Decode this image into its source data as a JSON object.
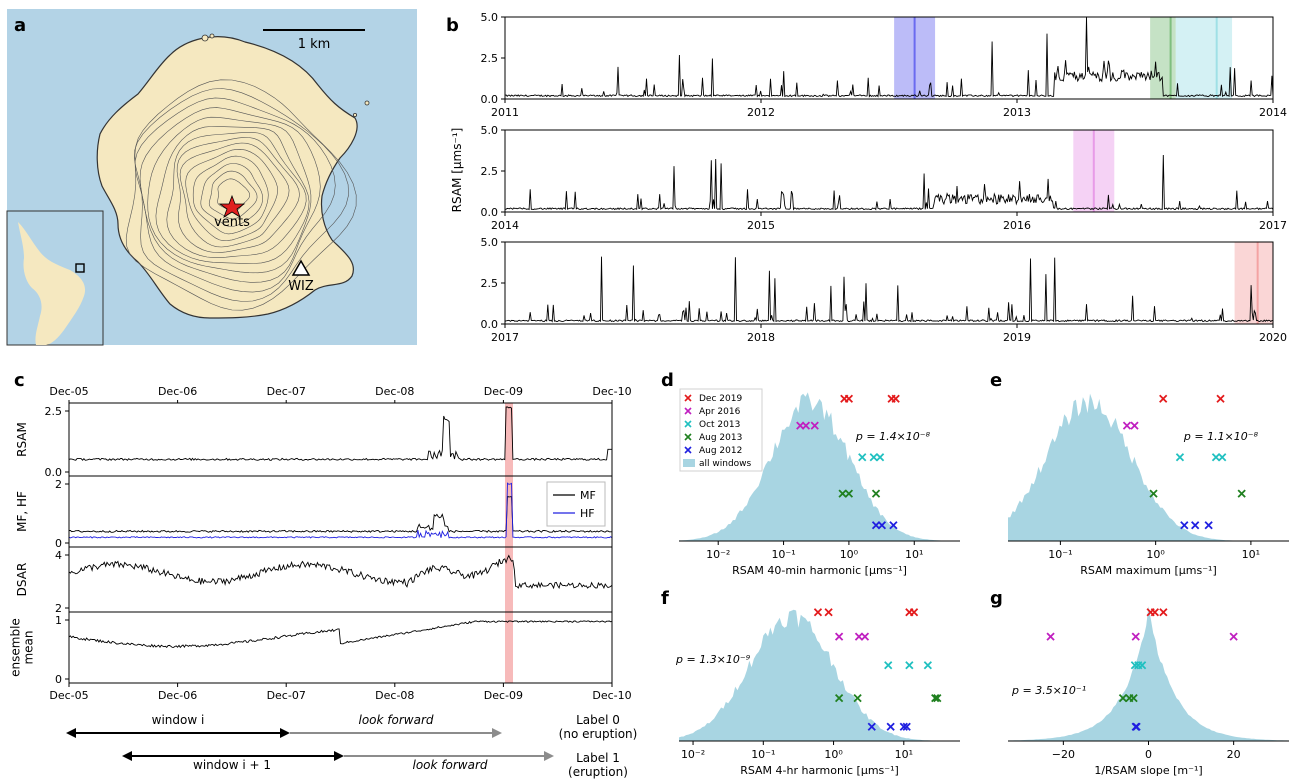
{
  "panel_letters": [
    "a",
    "b",
    "c",
    "d",
    "e",
    "f",
    "g"
  ],
  "map": {
    "scale_label": "1 km",
    "vents_label": "vents",
    "station_label": "WIZ",
    "colors": {
      "sea": "#b3d3e6",
      "land": "#f5e8c0",
      "contour": "#3a3a3a",
      "vent_star": "#e02020"
    }
  },
  "rsam_timeline": {
    "ylabel": "RSAM [μms⁻¹]",
    "rows": [
      {
        "ticks": [
          "2011",
          "2012",
          "2013",
          "2014"
        ],
        "yticks": [
          "0.0",
          "2.5",
          "5.0"
        ],
        "shaded": [
          {
            "start": 2012.52,
            "end": 2012.68,
            "color": "#6a6af0",
            "line": 2012.6
          },
          {
            "start": 2013.52,
            "end": 2013.62,
            "color": "#7fbf7f",
            "line": 2013.6
          },
          {
            "start": 2013.62,
            "end": 2013.84,
            "color": "#9fe0e6",
            "line": 2013.78
          }
        ]
      },
      {
        "ticks": [
          "2014",
          "2015",
          "2016",
          "2017"
        ],
        "yticks": [
          "0.0",
          "2.5",
          "5.0"
        ],
        "shaded": [
          {
            "start": 2016.22,
            "end": 2016.38,
            "color": "#e89be8",
            "line": 2016.3
          }
        ]
      },
      {
        "ticks": [
          "2017",
          "2018",
          "2019",
          "2020"
        ],
        "yticks": [
          "0.0",
          "2.5",
          "5.0"
        ],
        "shaded": [
          {
            "start": 2019.85,
            "end": 2020.0,
            "color": "#f3a3a3",
            "line": 2019.94
          }
        ]
      }
    ]
  },
  "window_panel": {
    "date_ticks": [
      "Dec-05",
      "Dec-06",
      "Dec-07",
      "Dec-08",
      "Dec-09",
      "Dec-10"
    ],
    "rows": [
      {
        "label": "RSAM",
        "yticks": [
          "0.0",
          "2.5"
        ]
      },
      {
        "label": "MF, HF",
        "yticks": [
          "0",
          "2"
        ]
      },
      {
        "label": "DSAR",
        "yticks": [
          "2",
          "4"
        ]
      },
      {
        "label": "ensemble\nmean",
        "yticks": [
          "0",
          "1"
        ]
      }
    ],
    "legend": [
      {
        "name": "MF",
        "color": "#000000"
      },
      {
        "name": "HF",
        "color": "#2020e0"
      }
    ],
    "eruption_shade_color": "#f6b3b3",
    "arrows": {
      "window_i": "window i",
      "look_forward_1": "look forward",
      "label_0_line1": "Label 0",
      "label_0_line2": "(no eruption)",
      "window_i1": "window i + 1",
      "look_forward_2": "look forward",
      "label_1_line1": "Label 1",
      "label_1_line2": "(eruption)"
    }
  },
  "distribution_legend": [
    {
      "name": "Dec 2019",
      "color": "#e31a1c",
      "marker": "x"
    },
    {
      "name": "Apr 2016",
      "color": "#c020c0",
      "marker": "x"
    },
    {
      "name": "Oct 2013",
      "color": "#20c0c0",
      "marker": "x"
    },
    {
      "name": "Aug 2013",
      "color": "#208020",
      "marker": "x"
    },
    {
      "name": "Aug 2012",
      "color": "#2020e0",
      "marker": "x"
    },
    {
      "name": "all windows",
      "color": "#a8d5e2",
      "marker": "patch"
    }
  ],
  "chart_data": [
    {
      "panel": "d",
      "type": "area",
      "xlabel": "RSAM 40-min harmonic [μms⁻¹]",
      "xscale": "log",
      "xticks": [
        "10⁻²",
        "10⁻¹",
        "10⁰",
        "10¹"
      ],
      "p_value": "p = 1.4×10⁻⁸",
      "markers": [
        {
          "event": "Dec 2019",
          "x": [
            0.85,
            1.0,
            4.5,
            5.2
          ]
        },
        {
          "event": "Apr 2016",
          "x": [
            0.18,
            0.22,
            0.3
          ]
        },
        {
          "event": "Oct 2013",
          "x": [
            1.6,
            2.4,
            3.0
          ]
        },
        {
          "event": "Aug 2013",
          "x": [
            0.8,
            1.0,
            2.6
          ]
        },
        {
          "event": "Aug 2012",
          "x": [
            2.6,
            3.2,
            4.8
          ]
        }
      ]
    },
    {
      "panel": "e",
      "type": "area",
      "xlabel": "RSAM maximum [μms⁻¹]",
      "xscale": "log",
      "xticks": [
        "10⁻¹",
        "10⁰",
        "10¹"
      ],
      "p_value": "p = 1.1×10⁻⁸",
      "markers": [
        {
          "event": "Dec 2019",
          "x": [
            1.2,
            4.8
          ]
        },
        {
          "event": "Apr 2016",
          "x": [
            0.5,
            0.6
          ]
        },
        {
          "event": "Oct 2013",
          "x": [
            1.8,
            4.3,
            5.0
          ]
        },
        {
          "event": "Aug 2013",
          "x": [
            0.95,
            8.0
          ]
        },
        {
          "event": "Aug 2012",
          "x": [
            2.0,
            2.6,
            3.6
          ]
        }
      ]
    },
    {
      "panel": "f",
      "type": "area",
      "xlabel": "RSAM 4-hr harmonic [μms⁻¹]",
      "xscale": "log",
      "xticks": [
        "10⁻²",
        "10⁻¹",
        "10⁰",
        "10¹"
      ],
      "p_value": "p = 1.3×10⁻⁹",
      "markers": [
        {
          "event": "Dec 2019",
          "x": [
            0.6,
            0.85,
            12.0,
            14.0
          ]
        },
        {
          "event": "Apr 2016",
          "x": [
            1.2,
            2.3,
            2.8
          ]
        },
        {
          "event": "Oct 2013",
          "x": [
            6.0,
            12.0,
            22.0
          ]
        },
        {
          "event": "Aug 2013",
          "x": [
            1.2,
            2.2,
            28.0,
            30.0
          ]
        },
        {
          "event": "Aug 2012",
          "x": [
            3.5,
            6.5,
            10.0,
            11.0
          ]
        }
      ]
    },
    {
      "panel": "g",
      "type": "area",
      "xlabel": "1/RSAM slope [m⁻¹]",
      "xscale": "linear",
      "xticks": [
        "−20",
        "0",
        "20"
      ],
      "p_value": "p = 3.5×10⁻¹",
      "markers": [
        {
          "event": "Dec 2019",
          "x": [
            0.5,
            1.5,
            3.5
          ]
        },
        {
          "event": "Apr 2016",
          "x": [
            -23.0,
            -3.0,
            20.0
          ]
        },
        {
          "event": "Oct 2013",
          "x": [
            -3.2,
            -2.4,
            -1.5
          ]
        },
        {
          "event": "Aug 2013",
          "x": [
            -6.0,
            -4.5,
            -3.5
          ]
        },
        {
          "event": "Aug 2012",
          "x": [
            -3.0,
            -2.8
          ]
        }
      ]
    }
  ]
}
